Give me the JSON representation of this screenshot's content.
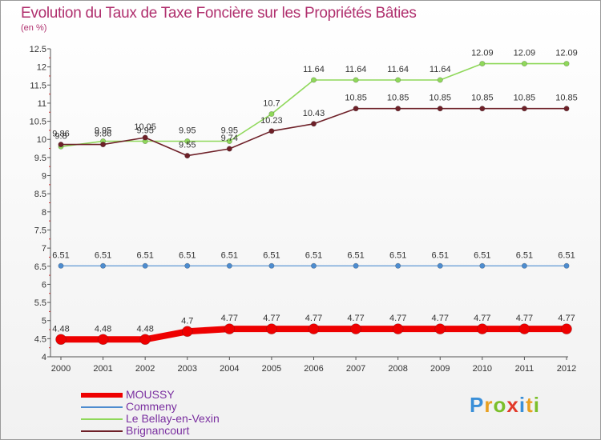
{
  "chart_data": {
    "type": "line",
    "title": "Evolution du Taux de Taxe Foncière sur les Propriétés Bâties",
    "ylabel": "(en %)",
    "x": [
      "2000",
      "2001",
      "2002",
      "2003",
      "2004",
      "2005",
      "2006",
      "2007",
      "2008",
      "2009",
      "2010",
      "2011",
      "2012"
    ],
    "ylim": [
      4,
      12.5
    ],
    "yticks": [
      "4",
      "4.5",
      "5",
      "5.5",
      "6",
      "6.5",
      "7",
      "7.5",
      "8",
      "8.5",
      "9",
      "9.5",
      "10",
      "10.5",
      "11",
      "11.5",
      "12",
      "12.5"
    ],
    "grid": false,
    "legend_position": "bottom-left",
    "series": [
      {
        "name": "MOUSSY",
        "color": "#ee0000",
        "values": [
          4.48,
          4.48,
          4.48,
          4.7,
          4.77,
          4.77,
          4.77,
          4.77,
          4.77,
          4.77,
          4.77,
          4.77,
          4.77
        ],
        "labels": [
          "4.48",
          "4.48",
          "4.48",
          "4.7",
          "4.77",
          "4.77",
          "4.77",
          "4.77",
          "4.77",
          "4.77",
          "4.77",
          "4.77",
          "4.77"
        ]
      },
      {
        "name": "Commeny",
        "color": "#4d8ccf",
        "values": [
          6.51,
          6.51,
          6.51,
          6.51,
          6.51,
          6.51,
          6.51,
          6.51,
          6.51,
          6.51,
          6.51,
          6.51,
          6.51
        ],
        "labels": [
          "6.51",
          "6.51",
          "6.51",
          "6.51",
          "6.51",
          "6.51",
          "6.51",
          "6.51",
          "6.51",
          "6.51",
          "6.51",
          "6.51",
          "6.51"
        ]
      },
      {
        "name": "Le Bellay-en-Vexin",
        "color": "#8fd85a",
        "values": [
          9.8,
          9.95,
          9.95,
          9.95,
          9.95,
          10.7,
          11.64,
          11.64,
          11.64,
          11.64,
          12.09,
          12.09,
          12.09
        ],
        "labels": [
          "9.8",
          "9.95",
          "9.95",
          "9.95",
          "9.95",
          "10.7",
          "11.64",
          "11.64",
          "11.64",
          "11.64",
          "12.09",
          "12.09",
          "12.09"
        ]
      },
      {
        "name": "Brignancourt",
        "color": "#6e2028",
        "values": [
          9.86,
          9.86,
          10.05,
          9.55,
          9.74,
          10.23,
          10.43,
          10.85,
          10.85,
          10.85,
          10.85,
          10.85,
          10.85
        ],
        "labels": [
          "9.86",
          "9.86",
          "10.05",
          "9.55",
          "9.74",
          "10.23",
          "10.43",
          "10.85",
          "10.85",
          "10.85",
          "10.85",
          "10.85",
          "10.85"
        ]
      }
    ]
  },
  "logo": {
    "text": "Proxiti"
  }
}
